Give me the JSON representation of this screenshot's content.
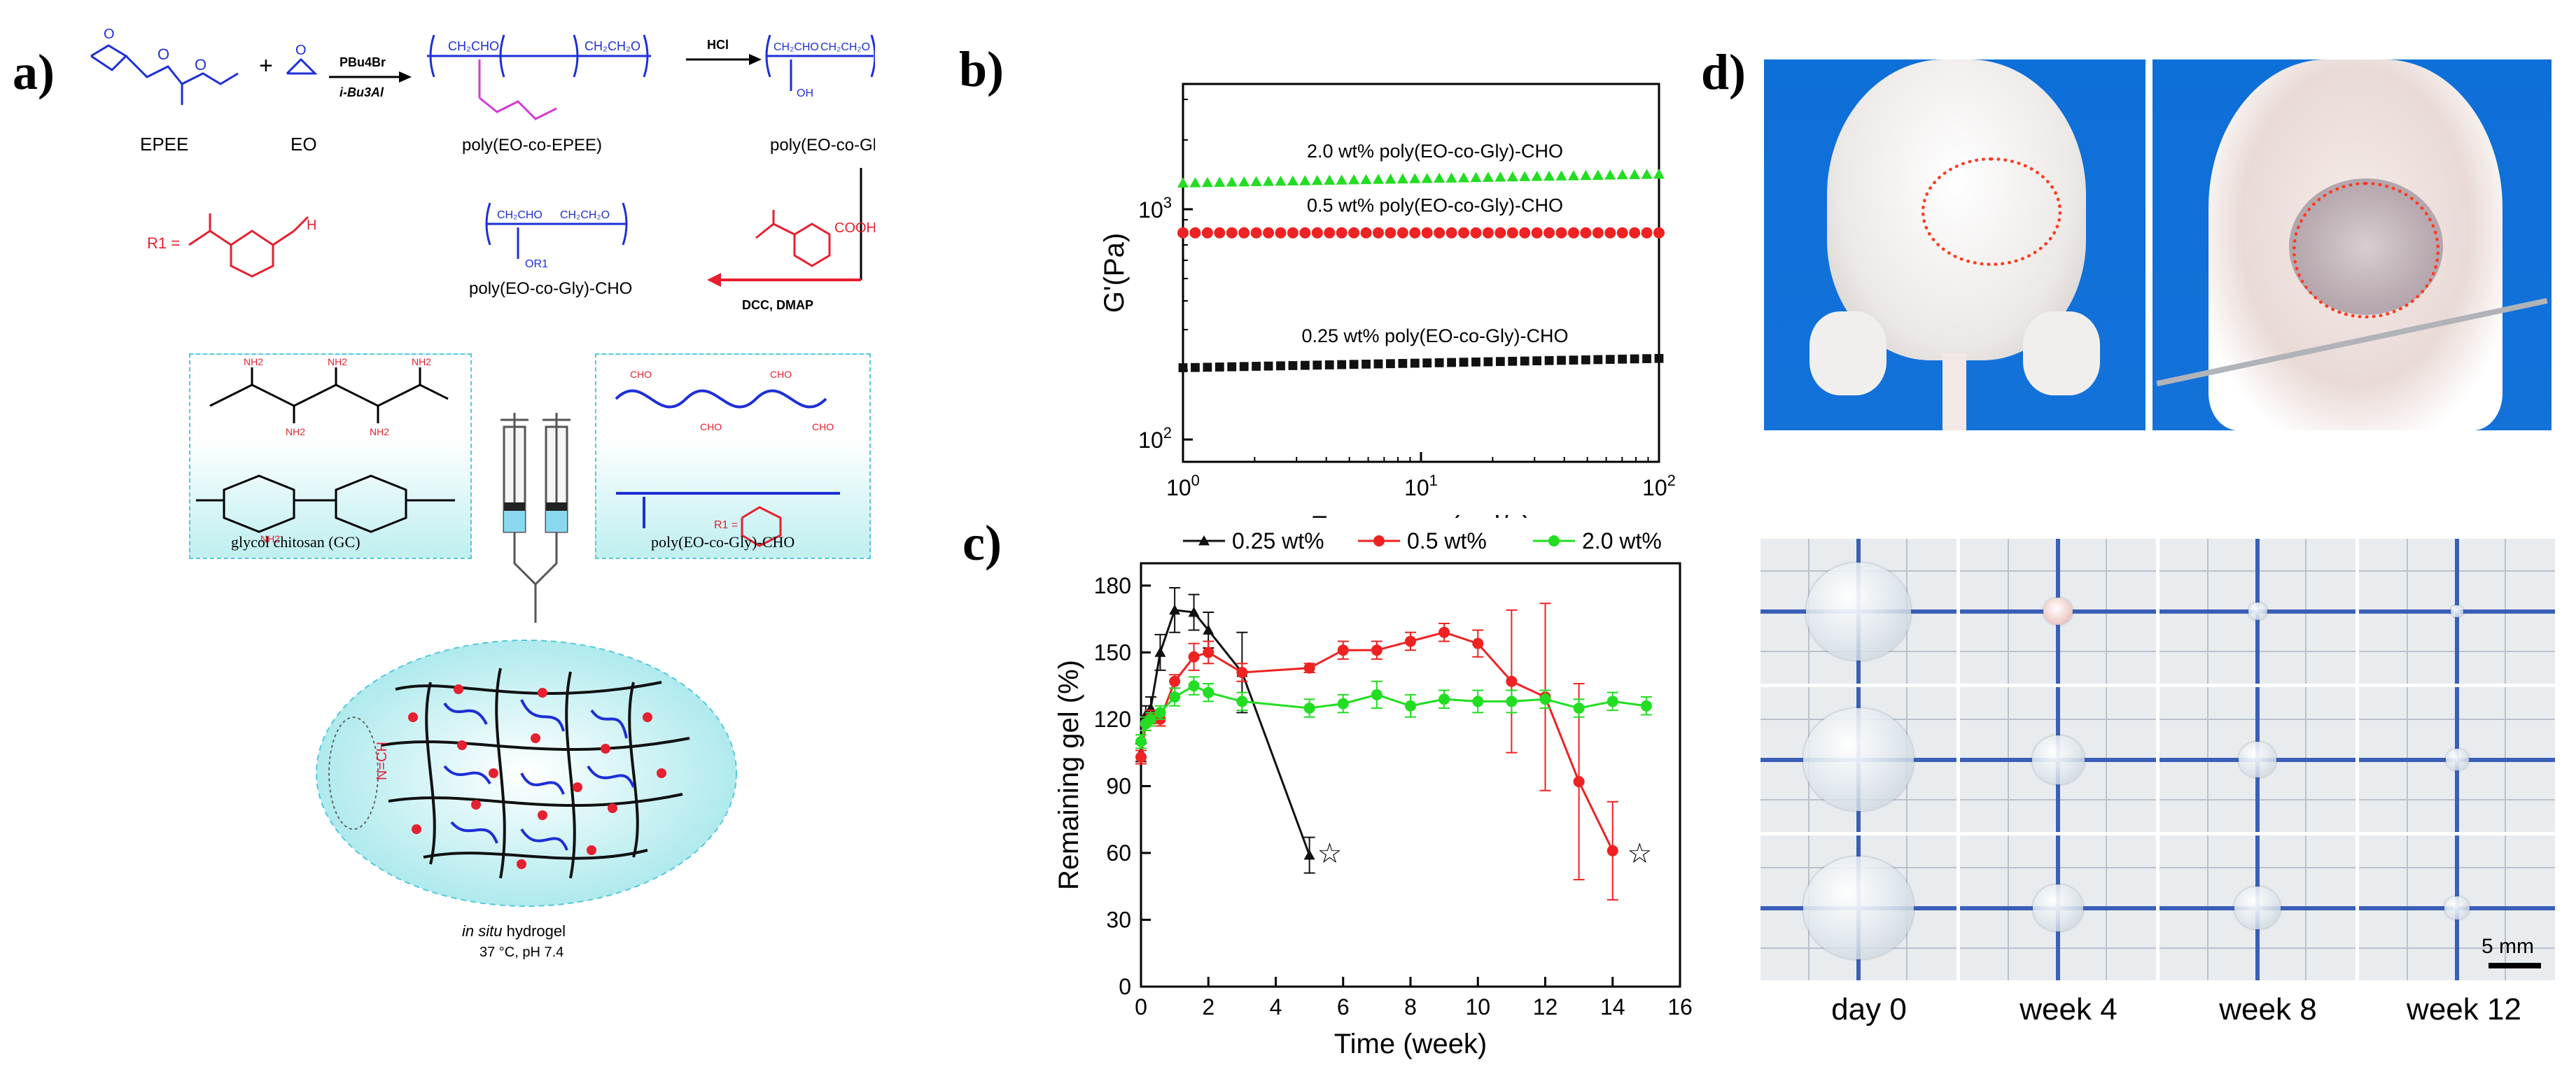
{
  "panel_labels": {
    "a": "a)",
    "b": "b)",
    "c": "c)",
    "d": "d)"
  },
  "scheme": {
    "monomer1": "EPEE",
    "monomer2": "EO",
    "catalyst_top": "PBu4Br",
    "catalyst_bottom": "i-Bu3Al",
    "polymer1": "poly(EO-co-EPEE)",
    "step2_reagent": "HCl",
    "polymer2": "poly(EO-co-Gly)",
    "r1_label": "R1 =",
    "acid_group": "COOH",
    "step3_reagent": "DCC, DMAP",
    "polymer3": "poly(EO-co-Gly)-CHO",
    "oh_label": "OH",
    "or1_label": "OR1",
    "gc_label": "glycol chitosan (GC)",
    "gc_group": "NH2",
    "cho_group": "CHO",
    "cho_label": "poly(EO-co-Gly)-CHO",
    "imine_label": "N=CH",
    "hydrogel_label_italic": "in situ",
    "hydrogel_label": "hydrogel",
    "conditions": "37 °C, pH 7.4"
  },
  "chart_data": [
    {
      "type": "scatter",
      "panel": "b",
      "title": "",
      "xlabel": "Frequency (rad/s)",
      "ylabel": "G'(Pa)",
      "xscale": "log",
      "yscale": "log",
      "xlim": [
        1,
        100
      ],
      "ylim": [
        80,
        3500
      ],
      "x_ticks": [
        {
          "value": 1,
          "base": "10",
          "exp": "0"
        },
        {
          "value": 10,
          "base": "10",
          "exp": "1"
        },
        {
          "value": 100,
          "base": "10",
          "exp": "2"
        }
      ],
      "y_ticks": [
        {
          "value": 100,
          "base": "10",
          "exp": "2"
        },
        {
          "value": 1000,
          "base": "10",
          "exp": "3"
        }
      ],
      "series": [
        {
          "name": "2.0 wt% poly(EO-co-Gly)-CHO",
          "color": "#22dd22",
          "marker": "triangle",
          "y_start": 1300,
          "y_end": 1420
        },
        {
          "name": "0.5 wt% poly(EO-co-Gly)-CHO",
          "color": "#ee2222",
          "marker": "circle",
          "y_start": 790,
          "y_end": 790
        },
        {
          "name": "0.25 wt% poly(EO-co-Gly)-CHO",
          "color": "#111111",
          "marker": "square",
          "y_start": 205,
          "y_end": 225
        }
      ],
      "n_points": 40
    },
    {
      "type": "line",
      "panel": "c",
      "xlabel": "Time (week)",
      "ylabel": "Remaining gel (%)",
      "xlim": [
        0,
        16
      ],
      "ylim": [
        0,
        190
      ],
      "x_ticks": [
        0,
        2,
        4,
        6,
        8,
        10,
        12,
        14,
        16
      ],
      "y_ticks": [
        0,
        30,
        60,
        90,
        120,
        150,
        180
      ],
      "series": [
        {
          "name": "0.25 wt%",
          "color": "#111111",
          "marker": "triangle",
          "x": [
            0,
            0.14,
            0.29,
            0.57,
            1,
            1.57,
            2,
            3,
            5
          ],
          "y": [
            105,
            122,
            125,
            150,
            169,
            168,
            160,
            141,
            59
          ],
          "err": [
            4,
            4,
            5,
            8,
            10,
            8,
            8,
            18,
            8
          ]
        },
        {
          "name": "0.5 wt%",
          "color": "#ee2222",
          "marker": "circle",
          "x": [
            0,
            0.14,
            0.29,
            0.57,
            1,
            1.57,
            2,
            3,
            5,
            6,
            7,
            8,
            9,
            10,
            11,
            12,
            13,
            14
          ],
          "y": [
            103,
            118,
            121,
            120,
            137,
            148,
            150,
            141,
            143,
            151,
            151,
            155,
            159,
            154,
            137,
            130,
            92,
            61
          ],
          "err": [
            3,
            3,
            3,
            3,
            3,
            6,
            5,
            4,
            2,
            4,
            4,
            4,
            4,
            6,
            32,
            42,
            44,
            22
          ]
        },
        {
          "name": "2.0 wt%",
          "color": "#22dd22",
          "marker": "circle",
          "x": [
            0,
            0.14,
            0.29,
            0.57,
            1,
            1.57,
            2,
            3,
            5,
            6,
            7,
            8,
            9,
            10,
            11,
            12,
            13,
            14,
            15
          ],
          "y": [
            110,
            118,
            120,
            123,
            130,
            135,
            132,
            128,
            125,
            127,
            131,
            126,
            129,
            128,
            128,
            129,
            125,
            128,
            126
          ],
          "err": [
            3,
            3,
            3,
            3,
            4,
            4,
            4,
            4,
            4,
            4,
            6,
            5,
            4,
            5,
            5,
            4,
            4,
            4,
            4
          ]
        }
      ],
      "end_markers": [
        {
          "x": 5.6,
          "y": 60,
          "symbol": "☆"
        },
        {
          "x": 14.8,
          "y": 60,
          "symbol": "☆"
        }
      ]
    }
  ],
  "panel_d": {
    "time_labels": [
      "day 0",
      "week 4",
      "week 8",
      "week 12"
    ],
    "scale_bar": "5 mm"
  }
}
